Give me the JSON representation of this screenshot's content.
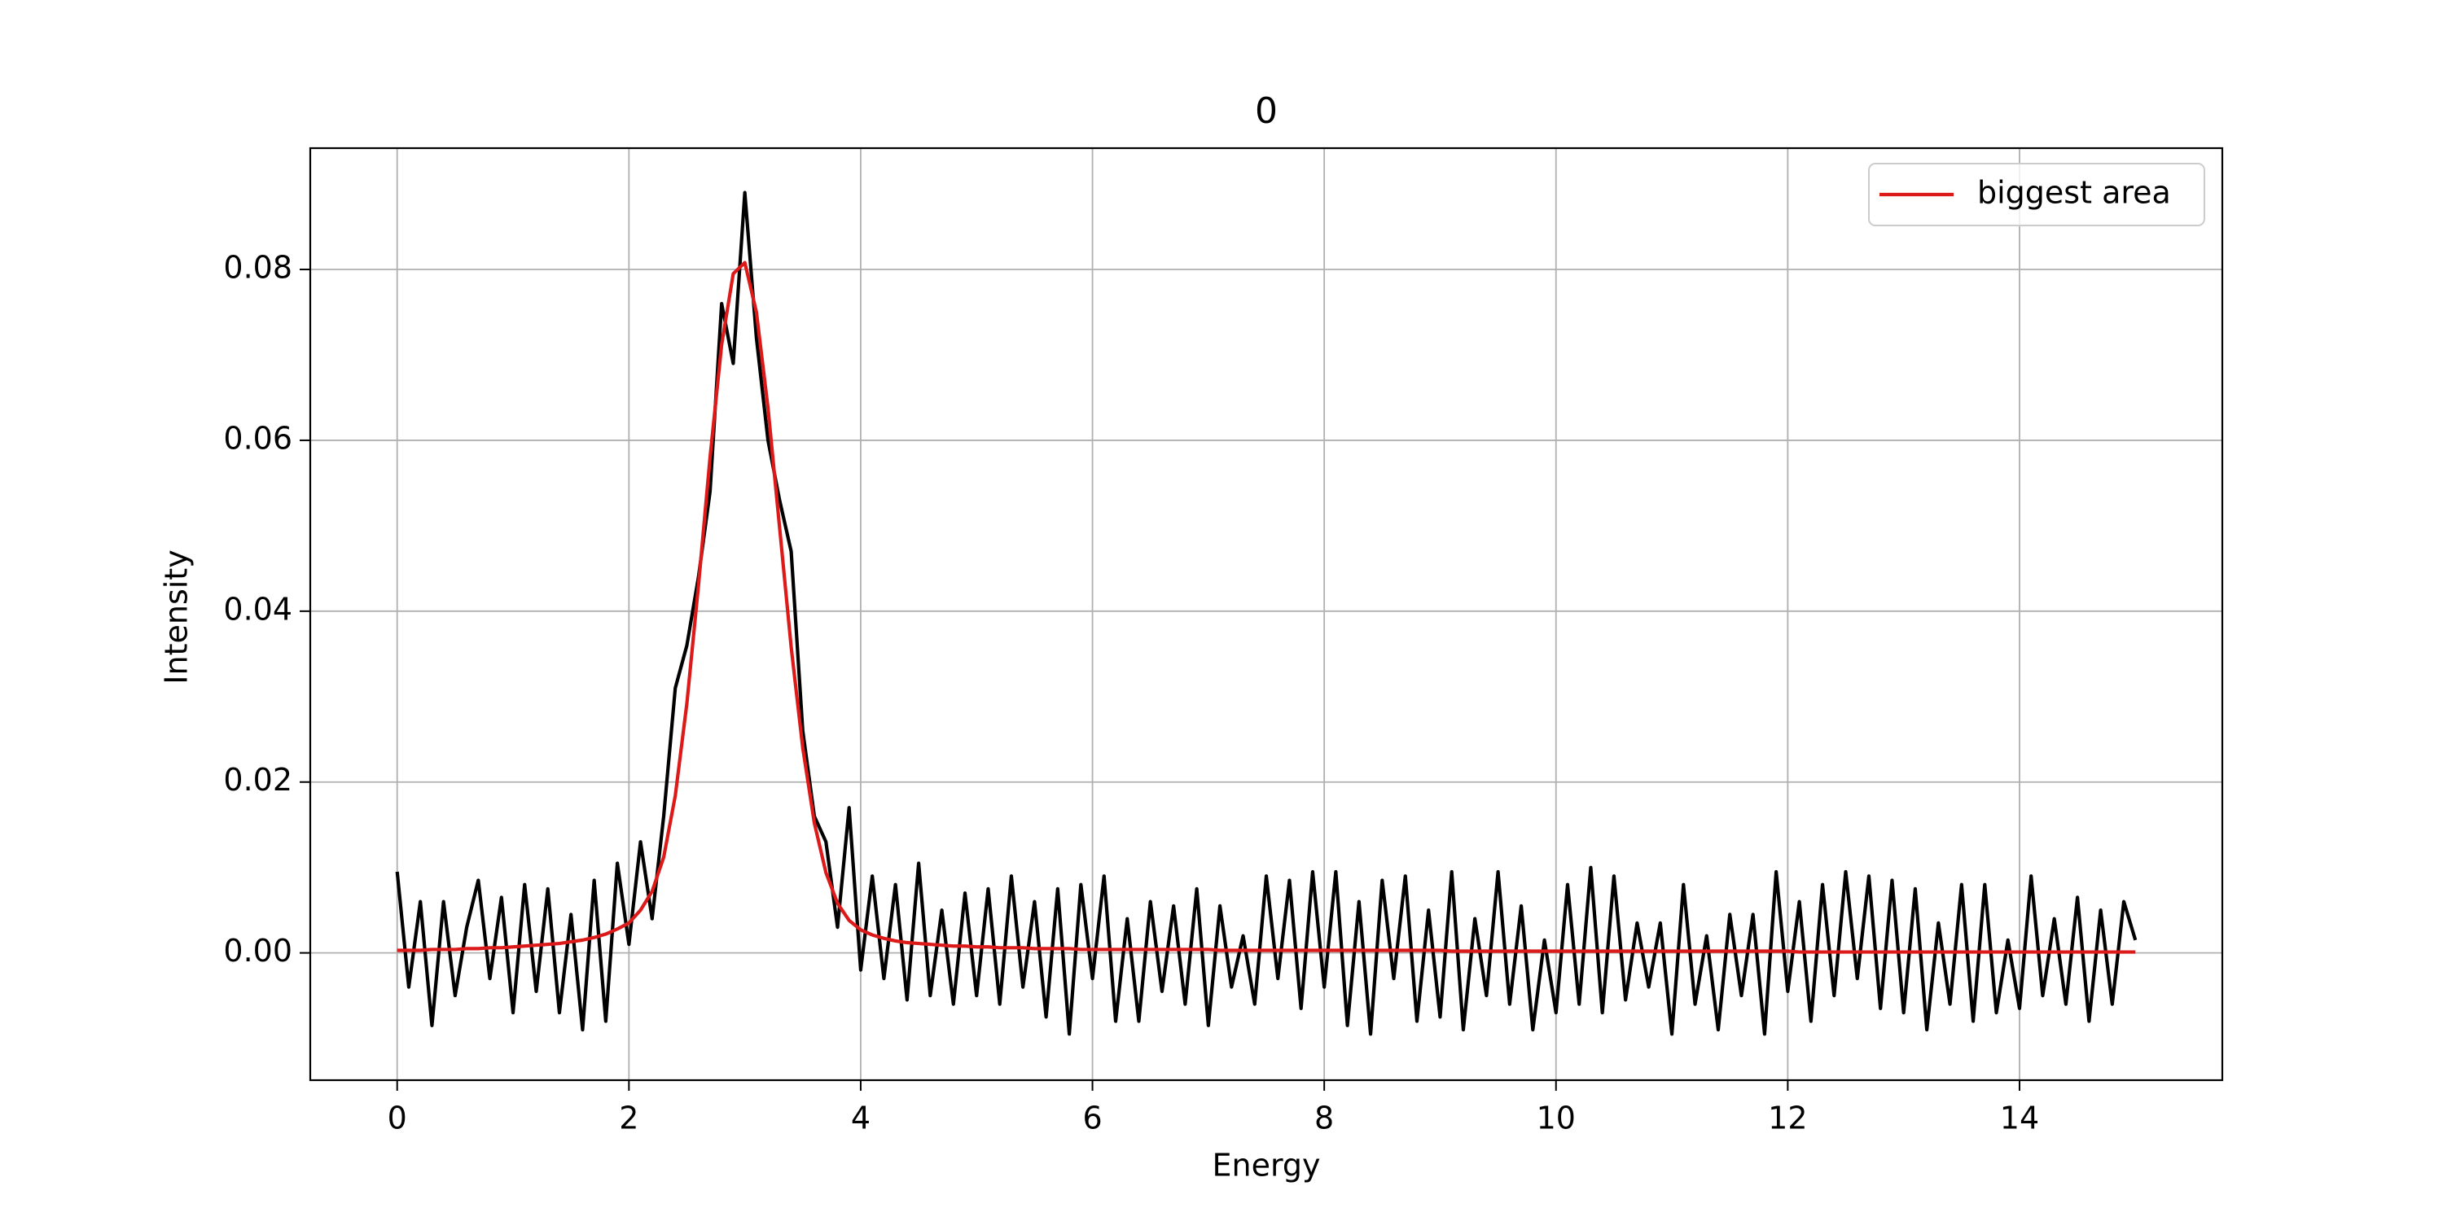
{
  "chart_data": {
    "type": "line",
    "title": "0",
    "x_label": "Energy",
    "y_label": "Intensity",
    "x": [
      0,
      0.1,
      0.2,
      0.3,
      0.4,
      0.5,
      0.6,
      0.7,
      0.8,
      0.9,
      1,
      1.1,
      1.2,
      1.3,
      1.4,
      1.5,
      1.6,
      1.7,
      1.8,
      1.9,
      2,
      2.1,
      2.2,
      2.3,
      2.4,
      2.5,
      2.6,
      2.7,
      2.8,
      2.9,
      3,
      3.1,
      3.2,
      3.3,
      3.4,
      3.5,
      3.6,
      3.7,
      3.8,
      3.9,
      4,
      4.1,
      4.2,
      4.3,
      4.4,
      4.5,
      4.6,
      4.7,
      4.8,
      4.9,
      5,
      5.1,
      5.2,
      5.3,
      5.4,
      5.5,
      5.6,
      5.7,
      5.8,
      5.9,
      6,
      6.1,
      6.2,
      6.3,
      6.4,
      6.5,
      6.6,
      6.7,
      6.8,
      6.9,
      7,
      7.1,
      7.2,
      7.3,
      7.4,
      7.5,
      7.6,
      7.7,
      7.8,
      7.9,
      8,
      8.1,
      8.2,
      8.3,
      8.4,
      8.5,
      8.6,
      8.7,
      8.8,
      8.9,
      9,
      9.1,
      9.2,
      9.3,
      9.4,
      9.5,
      9.6,
      9.7,
      9.8,
      9.9,
      10,
      10.1,
      10.2,
      10.3,
      10.4,
      10.5,
      10.6,
      10.7,
      10.8,
      10.9,
      11,
      11.1,
      11.2,
      11.3,
      11.4,
      11.5,
      11.6,
      11.7,
      11.8,
      11.9,
      12,
      12.1,
      12.2,
      12.3,
      12.4,
      12.5,
      12.6,
      12.7,
      12.8,
      12.9,
      13,
      13.1,
      13.2,
      13.3,
      13.4,
      13.5,
      13.6,
      13.7,
      13.8,
      13.9,
      14,
      14.1,
      14.2,
      14.3,
      14.4,
      14.5,
      14.6,
      14.7,
      14.8,
      14.9,
      15
    ],
    "series": [
      {
        "color": "#000000",
        "values": [
          0.0095,
          -0.004,
          0.006,
          -0.0085,
          0.006,
          -0.005,
          0.003,
          0.0085,
          -0.003,
          0.0065,
          -0.007,
          0.008,
          -0.0045,
          0.0075,
          -0.007,
          0.0045,
          -0.009,
          0.0085,
          -0.008,
          0.0105,
          0.001,
          0.013,
          0.004,
          0.016,
          0.031,
          0.036,
          0.044,
          0.054,
          0.076,
          0.069,
          0.089,
          0.072,
          0.06,
          0.053,
          0.047,
          0.026,
          0.016,
          0.013,
          0.003,
          0.017,
          -0.002,
          0.009,
          -0.003,
          0.008,
          -0.0055,
          0.0105,
          -0.005,
          0.005,
          -0.006,
          0.007,
          -0.005,
          0.0075,
          -0.006,
          0.009,
          -0.004,
          0.006,
          -0.0075,
          0.0075,
          -0.0095,
          0.008,
          -0.003,
          0.009,
          -0.008,
          0.004,
          -0.008,
          0.006,
          -0.0045,
          0.0055,
          -0.006,
          0.0075,
          -0.0085,
          0.0055,
          -0.004,
          0.002,
          -0.006,
          0.009,
          -0.003,
          0.0085,
          -0.0065,
          0.0095,
          -0.004,
          0.0095,
          -0.0085,
          0.006,
          -0.0095,
          0.0085,
          -0.003,
          0.009,
          -0.008,
          0.005,
          -0.0075,
          0.0095,
          -0.009,
          0.004,
          -0.005,
          0.0095,
          -0.006,
          0.0055,
          -0.009,
          0.0015,
          -0.007,
          0.008,
          -0.006,
          0.01,
          -0.007,
          0.009,
          -0.0055,
          0.0035,
          -0.004,
          0.0035,
          -0.0095,
          0.008,
          -0.006,
          0.002,
          -0.009,
          0.0045,
          -0.005,
          0.0045,
          -0.0095,
          0.0095,
          -0.0045,
          0.006,
          -0.008,
          0.008,
          -0.005,
          0.0095,
          -0.003,
          0.009,
          -0.0065,
          0.0085,
          -0.007,
          0.0075,
          -0.009,
          0.0035,
          -0.006,
          0.008,
          -0.008,
          0.008,
          -0.007,
          0.0015,
          -0.0065,
          0.009,
          -0.005,
          0.004,
          -0.006,
          0.0065,
          -0.008,
          0.005,
          -0.006,
          0.006,
          0.0015
        ]
      },
      {
        "name": "biggest area",
        "color": "#dd1a1a",
        "values": [
          0.0003,
          0.0003,
          0.0003,
          0.0004,
          0.0004,
          0.0004,
          0.0005,
          0.0005,
          0.0006,
          0.0006,
          0.0007,
          0.0008,
          0.0009,
          0.001,
          0.0011,
          0.0013,
          0.0015,
          0.0018,
          0.0022,
          0.0028,
          0.0035,
          0.005,
          0.0072,
          0.0112,
          0.0184,
          0.0292,
          0.043,
          0.058,
          0.0712,
          0.0795,
          0.0808,
          0.075,
          0.0638,
          0.0498,
          0.0358,
          0.024,
          0.0152,
          0.0094,
          0.0058,
          0.0038,
          0.0027,
          0.0021,
          0.0017,
          0.0014,
          0.0012,
          0.0011,
          0.001,
          0.0009,
          0.0008,
          0.0008,
          0.0007,
          0.0007,
          0.0006,
          0.0006,
          0.0006,
          0.0005,
          0.0005,
          0.0005,
          0.0005,
          0.0004,
          0.0004,
          0.0004,
          0.0004,
          0.0004,
          0.0004,
          0.0004,
          0.0004,
          0.0004,
          0.0004,
          0.0004,
          0.0004,
          0.0003,
          0.0003,
          0.0003,
          0.0003,
          0.0003,
          0.0003,
          0.0003,
          0.0003,
          0.0003,
          0.0003,
          0.0003,
          0.0003,
          0.0003,
          0.0003,
          0.0003,
          0.0003,
          0.0003,
          0.0003,
          0.0003,
          0.0003,
          0.0002,
          0.0002,
          0.0002,
          0.0002,
          0.0002,
          0.0002,
          0.0002,
          0.0002,
          0.0002,
          0.0002,
          0.0002,
          0.0002,
          0.0002,
          0.0002,
          0.0002,
          0.0002,
          0.0002,
          0.0002,
          0.0002,
          0.0002,
          0.0002,
          0.0002,
          0.0002,
          0.0002,
          0.0002,
          0.0002,
          0.0002,
          0.0002,
          0.0002,
          0.0002,
          0.0001,
          0.0001,
          0.0001,
          0.0001,
          0.0001,
          0.0001,
          0.0001,
          0.0001,
          0.0001,
          0.0001,
          0.0001,
          0.0001,
          0.0001,
          0.0001,
          0.0001,
          0.0001,
          0.0001,
          0.0001,
          0.0001,
          0.0001,
          0.0001,
          0.0001,
          0.0001,
          0.0001,
          0.0001,
          0.0001,
          0.0001,
          0.0001,
          0.0001,
          0.0001
        ]
      }
    ],
    "xlim": [
      -0.75,
      15.75
    ],
    "xticks": [
      0,
      2,
      4,
      6,
      8,
      10,
      12,
      14
    ],
    "ylim": [
      -0.0149,
      0.0942
    ],
    "yticks": [
      {
        "value": 0,
        "label": "0.00"
      },
      0.02,
      0.04,
      0.06,
      0.08
    ],
    "grid": true,
    "legend": "upper right"
  }
}
